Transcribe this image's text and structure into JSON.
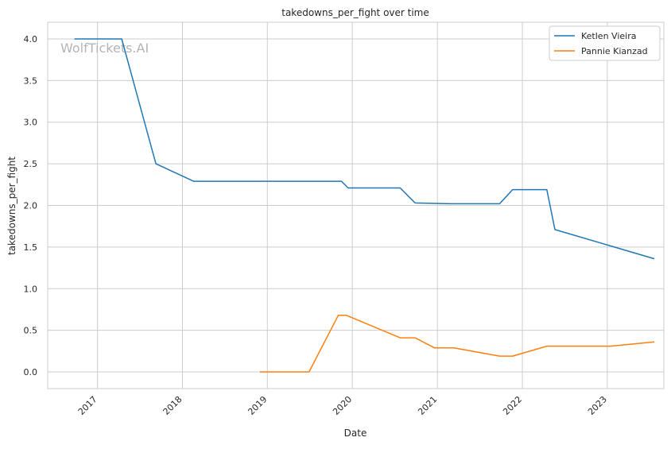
{
  "chart_data": {
    "type": "line",
    "title": "takedowns_per_fight over time",
    "xlabel": "Date",
    "ylabel": "takedowns_per_fight",
    "watermark": "WolfTickets.AI",
    "xlim": [
      "2016-06-01",
      "2023-09-01"
    ],
    "ylim": [
      -0.2,
      4.2
    ],
    "x_ticks": [
      "2017",
      "2018",
      "2019",
      "2020",
      "2021",
      "2022",
      "2023"
    ],
    "y_ticks": [
      "0.0",
      "0.5",
      "1.0",
      "1.5",
      "2.0",
      "2.5",
      "3.0",
      "3.5",
      "4.0"
    ],
    "grid": true,
    "legend_position": "top-right",
    "series": [
      {
        "name": "Ketlen Vieira",
        "color": "#1f77b4",
        "points": [
          {
            "x": "2016-09-24",
            "y": 4.0
          },
          {
            "x": "2017-04-15",
            "y": 4.0
          },
          {
            "x": "2017-09-09",
            "y": 2.5
          },
          {
            "x": "2018-02-18",
            "y": 2.29
          },
          {
            "x": "2019-11-16",
            "y": 2.29
          },
          {
            "x": "2019-12-14",
            "y": 2.21
          },
          {
            "x": "2020-07-25",
            "y": 2.21
          },
          {
            "x": "2020-09-27",
            "y": 2.03
          },
          {
            "x": "2021-02-27",
            "y": 2.02
          },
          {
            "x": "2021-09-25",
            "y": 2.02
          },
          {
            "x": "2021-11-20",
            "y": 2.19
          },
          {
            "x": "2022-04-16",
            "y": 2.19
          },
          {
            "x": "2022-05-21",
            "y": 1.71
          },
          {
            "x": "2023-07-22",
            "y": 1.36
          }
        ]
      },
      {
        "name": "Pannie Kianzad",
        "color": "#ff7f0e",
        "points": [
          {
            "x": "2018-11-30",
            "y": 0.0
          },
          {
            "x": "2019-06-29",
            "y": 0.0
          },
          {
            "x": "2019-11-02",
            "y": 0.68
          },
          {
            "x": "2019-12-07",
            "y": 0.68
          },
          {
            "x": "2020-07-25",
            "y": 0.41
          },
          {
            "x": "2020-09-27",
            "y": 0.41
          },
          {
            "x": "2020-12-19",
            "y": 0.29
          },
          {
            "x": "2021-03-13",
            "y": 0.29
          },
          {
            "x": "2021-09-25",
            "y": 0.19
          },
          {
            "x": "2021-11-20",
            "y": 0.19
          },
          {
            "x": "2022-04-16",
            "y": 0.31
          },
          {
            "x": "2023-01-14",
            "y": 0.31
          },
          {
            "x": "2023-07-22",
            "y": 0.36
          }
        ]
      }
    ]
  }
}
